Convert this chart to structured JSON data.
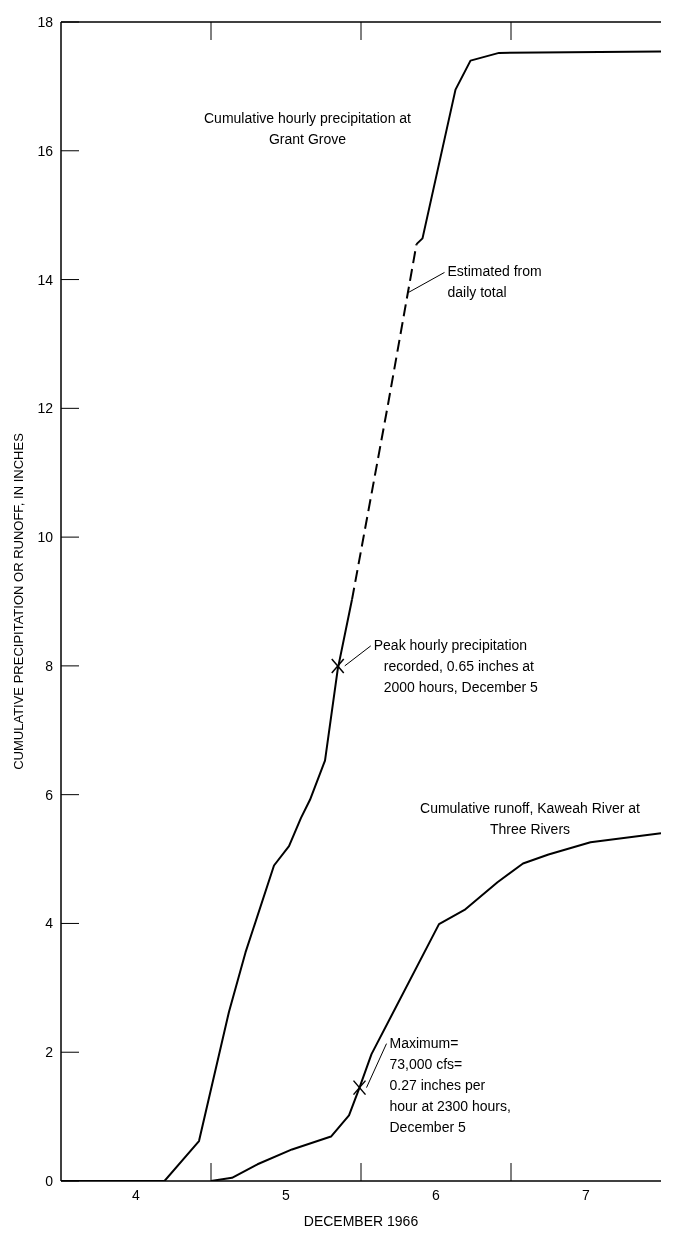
{
  "chart_data": {
    "type": "line",
    "xlabel": "DECEMBER 1966",
    "ylabel": "CUMULATIVE PRECIPITATION OR RUNOFF, IN INCHES",
    "xlim": [
      4,
      8
    ],
    "ylim": [
      0,
      18
    ],
    "xticks": [
      {
        "value": 4.5,
        "label": "4"
      },
      {
        "value": 5.5,
        "label": "5"
      },
      {
        "value": 6.5,
        "label": "6"
      },
      {
        "value": 7.5,
        "label": "7"
      }
    ],
    "yticks": [
      0,
      2,
      4,
      6,
      8,
      10,
      12,
      14,
      16,
      18
    ],
    "grid": false,
    "legend": false,
    "marker": "none",
    "series": [
      {
        "color": "#000000",
        "line_style": "solid",
        "x": [
          4,
          4.69,
          4.92,
          5.12,
          5.23,
          5.42,
          5.52,
          5.6,
          5.66,
          5.76,
          5.845,
          5.94
        ],
        "values": [
          0,
          0,
          0.62,
          2.63,
          3.55,
          4.9,
          5.2,
          5.64,
          5.92,
          6.53,
          7.95,
          9.03
        ]
      },
      {
        "color": "#000000",
        "line_style": "dashed",
        "x": [
          5.94,
          6.18,
          6.37
        ],
        "values": [
          9.03,
          12.06,
          14.55
        ]
      },
      {
        "name": "Cumulative hourly precipitation at Grant Grove",
        "color": "#000000",
        "line_style": "solid",
        "x": [
          6.37,
          6.41,
          6.63,
          6.73,
          6.92,
          8
        ],
        "values": [
          14.55,
          14.64,
          16.95,
          17.4,
          17.52,
          17.54
        ]
      },
      {
        "name": "Cumulative runoff, Kaweah River at Three Rivers",
        "color": "#000000",
        "line_style": "solid",
        "x": [
          5,
          5.14,
          5.31,
          5.54,
          5.8,
          5.92,
          5.99,
          6.07,
          6.52,
          6.69,
          6.91,
          7.08,
          7.25,
          7.53,
          8
        ],
        "values": [
          0,
          0.05,
          0.26,
          0.49,
          0.69,
          1.02,
          1.45,
          1.97,
          3.99,
          4.21,
          4.64,
          4.93,
          5.07,
          5.26,
          5.4
        ]
      }
    ],
    "annotations": [
      {
        "text": "Estimated from\ndaily total",
        "x": 6.31,
        "y": 13.8
      },
      {
        "text": "Peak hourly precipitation\nrecorded, 0.65 inches at\n2000 hours, December 5",
        "x": 5.845,
        "y": 8
      },
      {
        "text": "Maximum=\n73,000 cfs=\n0.27 inches per\nhour at 2300 hours,\nDecember 5",
        "x": 5.99,
        "y": 1.45
      }
    ]
  }
}
